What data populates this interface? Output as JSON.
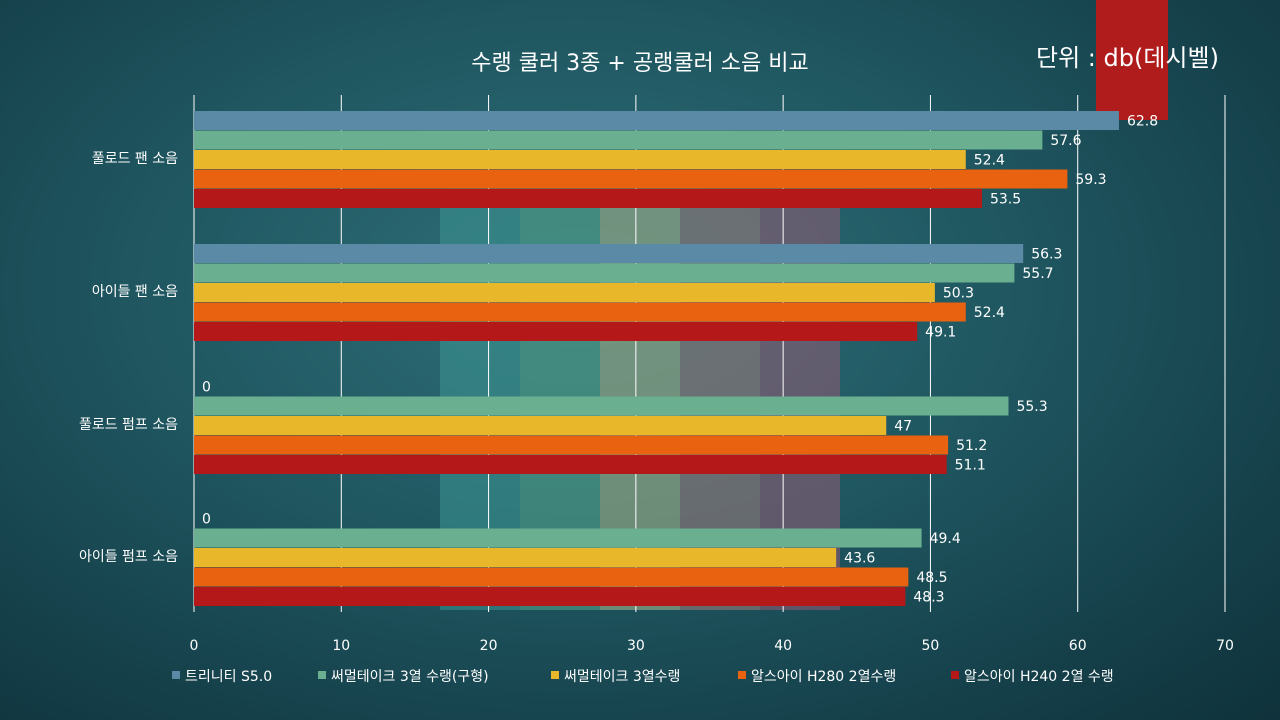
{
  "unit_label": "단위 : db(데시벨)",
  "colors": {
    "series": [
      "#5a8aa6",
      "#6aaf90",
      "#e8b82a",
      "#e8620f",
      "#b51818"
    ],
    "background": "#1f5660",
    "unit_tab": "#b01c1c"
  },
  "chart_data": {
    "type": "bar",
    "orientation": "horizontal",
    "title": "수랭 쿨러 3종 + 공랭쿨러 소음 비교",
    "categories": [
      "풀로드 팬 소음",
      "아이들 팬 소음",
      "풀로드 펌프 소음",
      "아이들 펌프 소음"
    ],
    "series": [
      {
        "name": "트리니티 S5.0",
        "values": [
          62.8,
          56.3,
          0,
          0
        ]
      },
      {
        "name": "써멀테이크 3열 수랭(구형)",
        "values": [
          57.6,
          55.7,
          55.3,
          49.4
        ]
      },
      {
        "name": "써멀테이크 3열수랭",
        "values": [
          52.4,
          50.3,
          47,
          43.6
        ]
      },
      {
        "name": "알스아이 H280 2열수랭",
        "values": [
          59.3,
          52.4,
          51.2,
          48.5
        ]
      },
      {
        "name": "알스아이 H240 2열 수랭",
        "values": [
          53.5,
          49.1,
          51.1,
          48.3
        ]
      }
    ],
    "xlim": [
      0,
      70
    ],
    "xticks": [
      "0",
      "10",
      "20",
      "30",
      "40",
      "50",
      "60",
      "70"
    ],
    "grid": true,
    "legend": "bottom"
  }
}
